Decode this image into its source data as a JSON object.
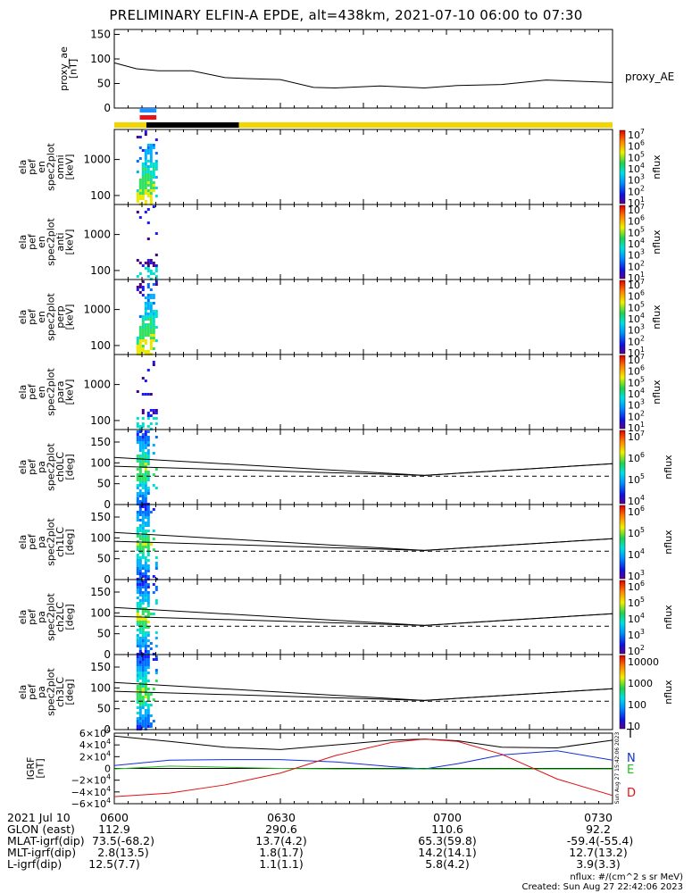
{
  "title": "PRELIMINARY ELFIN-A EPDE, alt=438km, 2021-07-10 06:00 to 07:30",
  "colors": {
    "bar_yellow": "#f2d600",
    "bar_black": "#000000",
    "bar_blue": "#1e90ff",
    "bar_red": "#e8141c",
    "igrf_t": "#000000",
    "igrf_n": "#1030d8",
    "igrf_e": "#20c020",
    "igrf_d": "#e01010"
  },
  "chart_data": [
    {
      "type": "line",
      "id": "proxy_ae",
      "ylabel": "proxy_ae\n[nT]",
      "legend": "proxy_AE",
      "ylim": [
        0,
        160
      ],
      "yticks": [
        "0",
        "50",
        "100",
        "150"
      ],
      "x_minutes": [
        0,
        4,
        8,
        14,
        20,
        24,
        30,
        36,
        40,
        48,
        56,
        62,
        70,
        78,
        90
      ],
      "values": [
        92,
        80,
        76,
        76,
        62,
        60,
        58,
        42,
        41,
        45,
        41,
        46,
        48,
        57,
        52
      ]
    },
    {
      "type": "heatmap",
      "id": "spectra",
      "panels": [
        {
          "ylabel": "ela\npef\nen\nspec2plot\nomni\n[keV]",
          "yticks": [
            "100",
            "1000"
          ],
          "cbar_ticks": [
            "10^7",
            "10^6",
            "10^5",
            "10^4",
            "10^3",
            "10^2",
            "10^1"
          ],
          "cbar_label": "nflux"
        },
        {
          "ylabel": "ela\npef\nen\nspec2plot\nanti\n[keV]",
          "yticks": [
            "100",
            "1000"
          ],
          "cbar_ticks": [
            "10^7",
            "10^6",
            "10^5",
            "10^4",
            "10^3",
            "10^2",
            "10^1"
          ],
          "cbar_label": "nflux"
        },
        {
          "ylabel": "ela\npef\nen\nspec2plot\nperp\n[keV]",
          "yticks": [
            "100",
            "1000"
          ],
          "cbar_ticks": [
            "10^7",
            "10^6",
            "10^5",
            "10^4",
            "10^3",
            "10^2",
            "10^1"
          ],
          "cbar_label": "nflux"
        },
        {
          "ylabel": "ela\npef\nen\nspec2plot\npara\n[keV]",
          "yticks": [
            "100",
            "1000"
          ],
          "cbar_ticks": [
            "10^7",
            "10^6",
            "10^5",
            "10^4",
            "10^3",
            "10^2",
            "10^1"
          ],
          "cbar_label": "nflux"
        }
      ]
    },
    {
      "type": "heatmap",
      "id": "pitch_angle",
      "yticks": [
        "0",
        "50",
        "100",
        "150"
      ],
      "panels": [
        {
          "ylabel": "ela\npef\npa\nspec2plot\nch0LC\n[deg]",
          "cbar_ticks": [
            "10^7",
            "10^6",
            "10^5",
            "10^4"
          ],
          "cbar_label": "nflux"
        },
        {
          "ylabel": "ela\npef\npa\nspec2plot\nch1LC\n[deg]",
          "cbar_ticks": [
            "10^6",
            "10^5",
            "10^4",
            "10^3"
          ],
          "cbar_label": "nflux"
        },
        {
          "ylabel": "ela\npef\npa\nspec2plot\nch2LC\n[deg]",
          "cbar_ticks": [
            "10^6",
            "10^5",
            "10^4",
            "10^3",
            "10^2"
          ],
          "cbar_label": "nflux"
        },
        {
          "ylabel": "ela\npef\npa\nspec2plot\nch3LC\n[deg]",
          "cbar_ticks": [
            "10000",
            "1000",
            "100",
            "10"
          ],
          "cbar_label": "nflux"
        }
      ],
      "loss_cone_x_minutes": [
        0,
        56,
        90
      ],
      "loss_cone_upper_deg": [
        113,
        70,
        98
      ],
      "loss_cone_lower_deg": [
        92,
        70,
        98
      ],
      "dashed_deg": 68
    },
    {
      "type": "line",
      "id": "igrf",
      "ylabel": "IGRF\n[nT]",
      "ylim": [
        -60000,
        60000
      ],
      "yticks": [
        "6×10^4",
        "4×10^4",
        "2×10^4",
        "0",
        "−2×10^4",
        "−4×10^4",
        "−6×10^4"
      ],
      "x_minutes": [
        0,
        10,
        20,
        30,
        40,
        50,
        56,
        62,
        70,
        80,
        90
      ],
      "series": [
        {
          "name": "T",
          "values": [
            55000,
            46000,
            36000,
            32000,
            40000,
            48000,
            50000,
            47000,
            36000,
            35000,
            48000
          ]
        },
        {
          "name": "N",
          "values": [
            5000,
            14000,
            15000,
            15000,
            11000,
            3000,
            -1000,
            8000,
            23000,
            30000,
            14000
          ]
        },
        {
          "name": "E",
          "values": [
            -1000,
            4000,
            2000,
            0,
            -1000,
            -1000,
            -1000,
            -1000,
            -1000,
            -1000,
            -1000
          ]
        },
        {
          "name": "D",
          "values": [
            -48000,
            -42000,
            -28000,
            -8000,
            22000,
            44000,
            50000,
            46000,
            24000,
            -18000,
            -46000
          ]
        }
      ]
    }
  ],
  "side_stamp": "Sun Aug 27 15:42:06 2023",
  "footer": {
    "time_ticks": [
      "0600",
      "0630",
      "0700",
      "0730"
    ],
    "rows": [
      {
        "label": "2021 Jul 10",
        "values": [
          "0600",
          "0630",
          "0700",
          "0730"
        ]
      },
      {
        "label": "GLON (east)",
        "values": [
          "112.9",
          "290.6",
          "110.6",
          "92.2"
        ]
      },
      {
        "label": "MLAT-igrf(dip)",
        "values": [
          "73.5(-68.2)",
          "13.7(4.2)",
          "65.3(59.8)",
          "-59.4(-55.4)"
        ]
      },
      {
        "label": "MLT-igrf(dip)",
        "values": [
          "2.8(13.5)",
          "1.8(1.7)",
          "14.2(14.1)",
          "12.7(13.2)"
        ]
      },
      {
        "label": "L-igrf(dip)",
        "values": [
          "12.5(7.7)",
          "1.1(1.1)",
          "5.8(4.2)",
          "3.9(3.3)"
        ]
      }
    ],
    "units_note": "nflux: #/(cm^2 s sr MeV)",
    "created": "Created: Sun Aug 27 22:42:06 2023"
  }
}
